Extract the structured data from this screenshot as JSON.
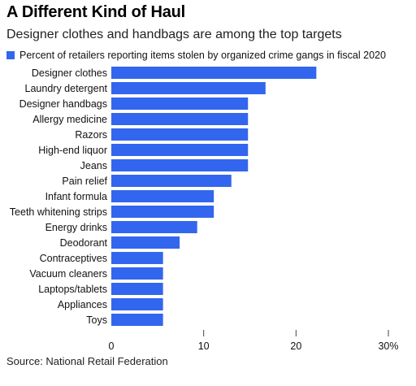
{
  "title": "A Different Kind of Haul",
  "subtitle": "Designer clothes and handbags are among the top targets",
  "legend": {
    "label": "Percent of retailers reporting items stolen by organized crime gangs in fiscal 2020",
    "color": "#3366ee"
  },
  "source": "Source: National Retail Federation",
  "chart_data": {
    "type": "bar",
    "orientation": "horizontal",
    "categories": [
      "Designer clothes",
      "Laundry detergent",
      "Designer handbags",
      "Allergy medicine",
      "Razors",
      "High-end liquor",
      "Jeans",
      "Pain relief",
      "Infant formula",
      "Teeth whitening strips",
      "Energy drinks",
      "Deodorant",
      "Contraceptives",
      "Vacuum cleaners",
      "Laptops/tablets",
      "Appliances",
      "Toys"
    ],
    "series": [
      {
        "values": [
          22.2,
          16.7,
          14.8,
          14.8,
          14.8,
          14.8,
          14.8,
          13.0,
          11.1,
          11.1,
          9.3,
          7.4,
          5.6,
          5.6,
          5.6,
          5.6,
          5.6
        ]
      }
    ],
    "xlim": [
      0,
      30
    ],
    "ticks": [
      0,
      10,
      20,
      30
    ],
    "tick_labels": [
      "0",
      "10",
      "20",
      "30%"
    ],
    "grid": false,
    "legend_position": "top-left"
  }
}
